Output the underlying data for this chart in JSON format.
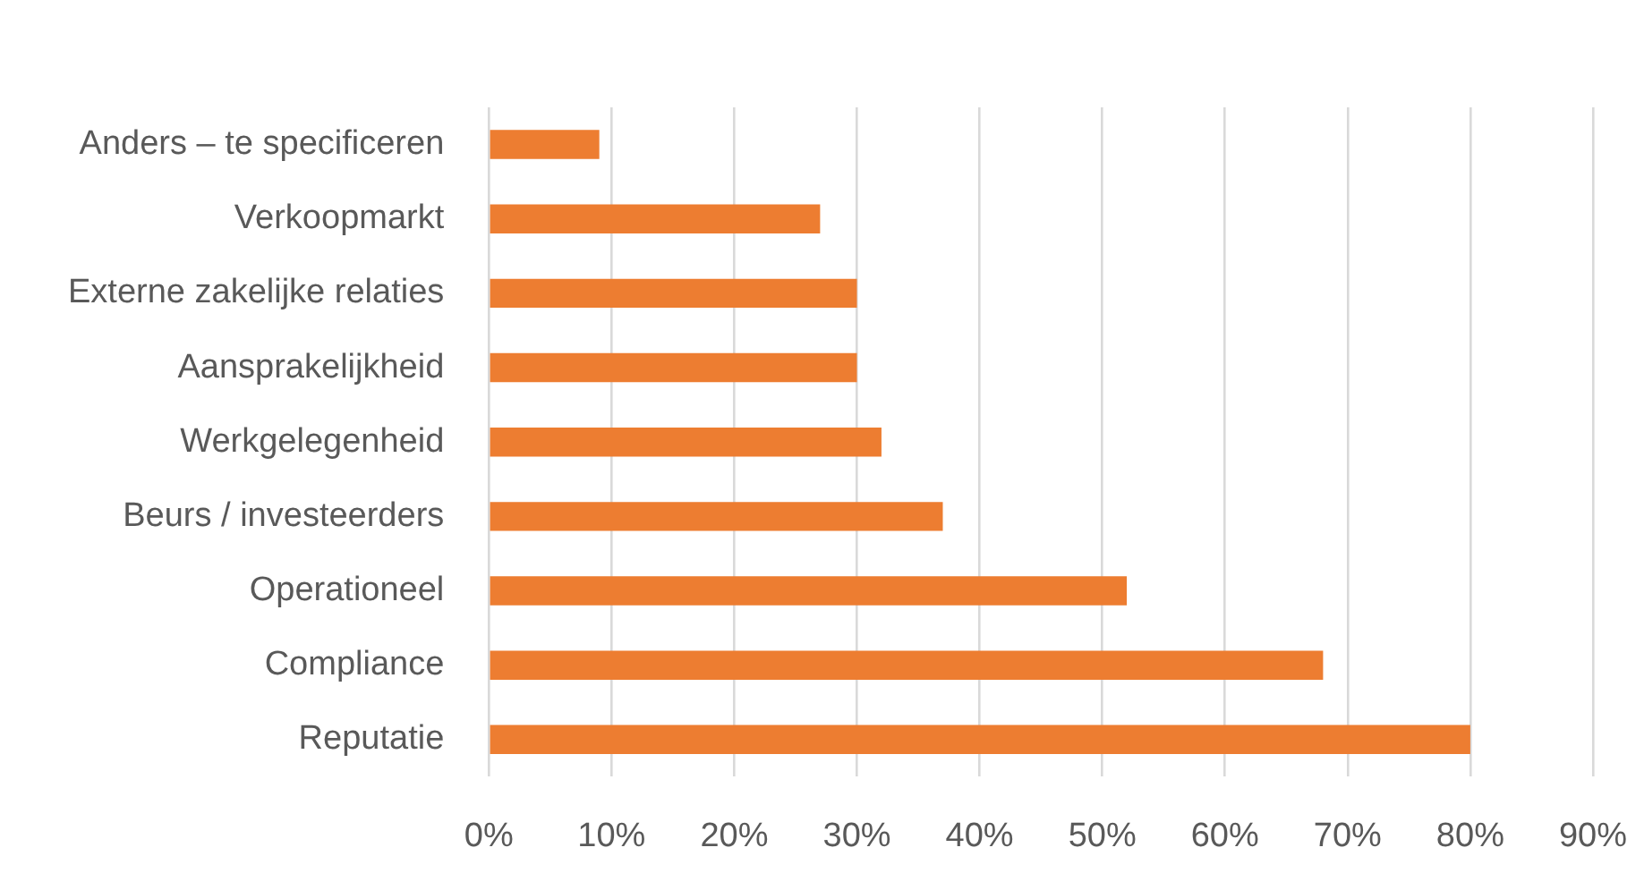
{
  "chart_data": {
    "type": "bar",
    "orientation": "horizontal",
    "categories": [
      "Anders – te specificeren",
      "Verkoopmarkt",
      "Externe zakelijke relaties",
      "Aansprakelijkheid",
      "Werkgelegenheid",
      "Beurs / investeerders",
      "Operationeel",
      "Compliance",
      "Reputatie"
    ],
    "values": [
      9,
      27,
      30,
      30,
      32,
      37,
      52,
      68,
      80
    ],
    "color": "#ed7d31",
    "xlim": [
      0,
      90
    ],
    "xticks": [
      {
        "value": 0,
        "label": "0%"
      },
      {
        "value": 10,
        "label": "10%"
      },
      {
        "value": 20,
        "label": "20%"
      },
      {
        "value": 30,
        "label": "30%"
      },
      {
        "value": 40,
        "label": "40%"
      },
      {
        "value": 50,
        "label": "50%"
      },
      {
        "value": 60,
        "label": "60%"
      },
      {
        "value": 70,
        "label": "70%"
      },
      {
        "value": 80,
        "label": "80%"
      },
      {
        "value": 90,
        "label": "90%"
      }
    ],
    "grid": "x",
    "legend": false
  }
}
